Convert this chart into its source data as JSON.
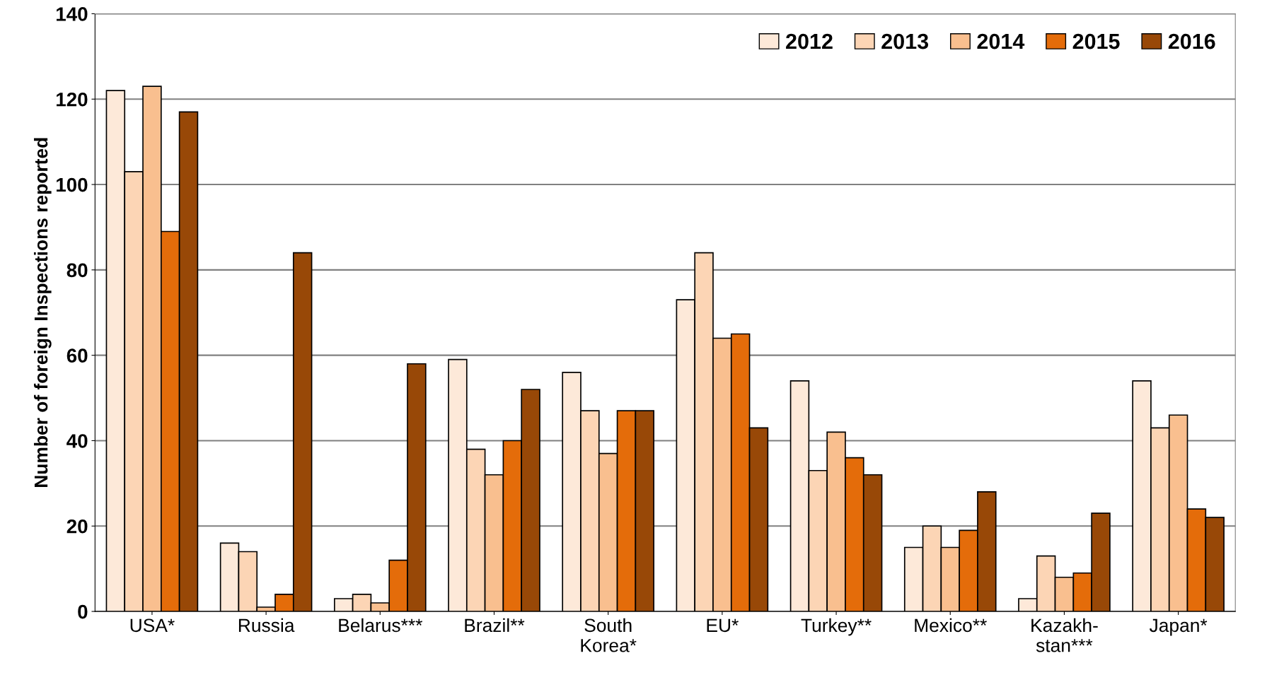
{
  "chart_data": {
    "type": "bar",
    "ylabel": "Number of foreign Inspections reported",
    "categories": [
      "USA*",
      "Russia",
      "Belarus***",
      "Brazil**",
      "South\nKorea*",
      "EU*",
      "Turkey**",
      "Mexico**",
      "Kazakh-\nstan***",
      "Japan*"
    ],
    "series": [
      {
        "name": "2012",
        "color": "#fde9d9",
        "values": [
          122,
          16,
          3,
          59,
          56,
          73,
          54,
          15,
          3,
          54
        ]
      },
      {
        "name": "2013",
        "color": "#fcd5b5",
        "values": [
          103,
          14,
          4,
          38,
          47,
          84,
          33,
          20,
          13,
          43
        ]
      },
      {
        "name": "2014",
        "color": "#f9bf8f",
        "values": [
          123,
          1,
          2,
          32,
          37,
          64,
          42,
          15,
          8,
          46
        ]
      },
      {
        "name": "2015",
        "color": "#e46c0a",
        "values": [
          89,
          4,
          12,
          40,
          47,
          65,
          36,
          19,
          9,
          24
        ]
      },
      {
        "name": "2016",
        "color": "#984807",
        "values": [
          117,
          84,
          58,
          52,
          47,
          43,
          32,
          28,
          23,
          22
        ]
      }
    ],
    "ylim": [
      0,
      140
    ],
    "yticks": [
      0,
      20,
      40,
      60,
      80,
      100,
      120,
      140
    ],
    "grid": "y",
    "legend": "top right"
  }
}
